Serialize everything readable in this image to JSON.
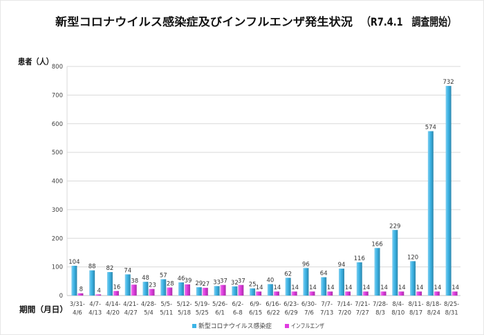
{
  "chart_data": {
    "type": "bar",
    "title": "新型コロナウイルス感染症及びインフルエンザ発生状況",
    "subtitle": "（R7.4.1　調査開始）",
    "xlabel": "期間（月日）",
    "ylabel": "患者（人）",
    "ylim": [
      0,
      800
    ],
    "yticks": [
      0,
      100,
      200,
      300,
      400,
      500,
      600,
      700,
      800
    ],
    "grid": true,
    "legend_position": "bottom",
    "categories": [
      "3/31-4/6",
      "4/7-4/13",
      "4/14-4/20",
      "4/21-4/27",
      "4/28-5/4",
      "5/5-5/11",
      "5/12-5/18",
      "5/19-5/25",
      "5/26-6/1",
      "6/2-6-8",
      "6/9-6/15",
      "6/16-6/22",
      "6/23-6/29",
      "6/30-7/6",
      "7/7-7/13",
      "7/14-7/20",
      "7/21-7/27",
      "7/28-8/3",
      "8/4-8/10",
      "8/11-8/17",
      "8/18-8/24",
      "8/25-8/31"
    ],
    "series": [
      {
        "name": "新型コロナウイルス感染症",
        "color": "#3cb4e6",
        "values": [
          104,
          88,
          82,
          74,
          48,
          57,
          46,
          29,
          33,
          32,
          25,
          40,
          62,
          96,
          64,
          94,
          116,
          166,
          229,
          120,
          574,
          732
        ]
      },
      {
        "name": "インフルエンザ",
        "color": "#e03ce0",
        "values": [
          8,
          4,
          16,
          38,
          23,
          28,
          39,
          27,
          37,
          37,
          14,
          14,
          14,
          14,
          14,
          14,
          14,
          14,
          14,
          14,
          14,
          14
        ]
      }
    ]
  }
}
